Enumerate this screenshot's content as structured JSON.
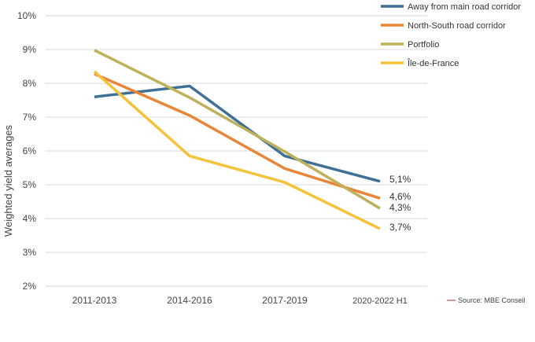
{
  "chart_data": {
    "type": "line",
    "title": "",
    "xlabel": "",
    "ylabel": "Weighted yield averages",
    "categories": [
      "2011-2013",
      "2014-2016",
      "2017-2019",
      "2020-2022 H1"
    ],
    "y_ticks": [
      "2%",
      "3%",
      "4%",
      "5%",
      "6%",
      "7%",
      "8%",
      "9%",
      "10%"
    ],
    "ylim": [
      2,
      10
    ],
    "grid": true,
    "legend_position": "top-right",
    "series": [
      {
        "name": "Away from main road corridor",
        "color": "#3f7196",
        "values": [
          7.6,
          7.92,
          5.85,
          5.1
        ],
        "end_label": "5,1%"
      },
      {
        "name": "North-South road corridor",
        "color": "#e88536",
        "values": [
          8.28,
          7.05,
          5.48,
          4.6
        ],
        "end_label": "4,6%"
      },
      {
        "name": "Portfolio",
        "color": "#bfb05a",
        "values": [
          8.98,
          7.58,
          5.98,
          4.3
        ],
        "end_label": "4,3%"
      },
      {
        "name": "Île-de-France",
        "color": "#f5c23c",
        "values": [
          8.35,
          5.85,
          5.07,
          3.7
        ],
        "end_label": "3,7%"
      }
    ],
    "source": {
      "text": "Source: MBE Conseil",
      "color": "#c0504d"
    }
  }
}
